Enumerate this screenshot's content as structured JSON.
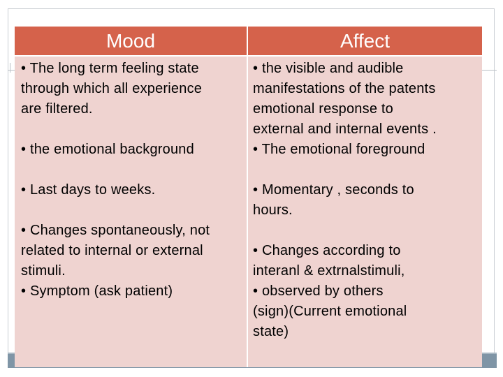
{
  "table": {
    "headers": [
      "Mood",
      "Affect"
    ],
    "mood": {
      "p1": [
        "• The long term feeling state",
        "through which all experience",
        "are filtered."
      ],
      "p2": [
        "• the emotional background"
      ],
      "p3": [
        "• Last days to weeks."
      ],
      "p4": [
        "• Changes spontaneously, not",
        "related to internal or external",
        "stimuli.",
        "• Symptom (ask patient)"
      ]
    },
    "affect": {
      "p1": [
        "• the visible and audible",
        "manifestations of the patents",
        "emotional response to",
        "external and internal events .",
        "• The emotional foreground"
      ],
      "p2": [
        "• Momentary , seconds to",
        "hours."
      ],
      "p3": [
        "• Changes according to",
        "interanl & extrnalstimuli,",
        "• observed by others",
        "(sign)(Current emotional",
        "state)"
      ]
    }
  },
  "colors": {
    "header_bg": "#d5624b",
    "header_text": "#ffffff",
    "body_bg": "#efd3d0",
    "band": "#7f95a6"
  }
}
